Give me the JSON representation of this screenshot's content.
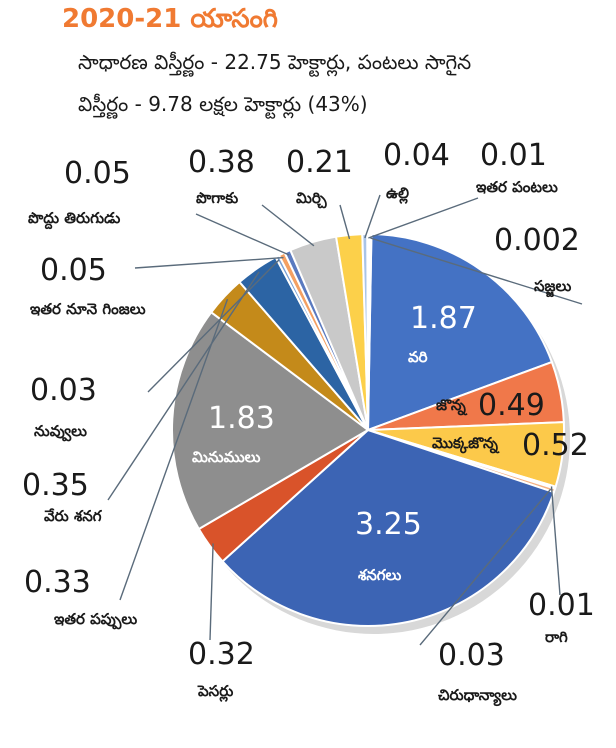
{
  "header": {
    "title": "2020-21 యాసంగి",
    "line1": "సాధారణ విస్తీర్ణం - 22.75 హెక్టార్లు, పంటలు సాగైన",
    "line2": "విస్తీర్ణం - 9.78 లక్షల హెక్టార్లు (43%)"
  },
  "chart_data": {
    "type": "pie",
    "title": "2020-21 యాసంగి",
    "unit": "",
    "slices": [
      {
        "label": "వరి",
        "value": 1.87,
        "color": "#4472c4"
      },
      {
        "label": "జొన్న",
        "value": 0.49,
        "color": "#f0784a"
      },
      {
        "label": "మొక్కజొన్న",
        "value": 0.52,
        "color": "#fcc94a"
      },
      {
        "label": "రాగి",
        "value": 0.01,
        "color": "#cfe0f4"
      },
      {
        "label": "చిరుధాన్యాలు",
        "value": 0.03,
        "color": "#f4b183"
      },
      {
        "label": "శనగలు",
        "value": 3.25,
        "color": "#3c64b4"
      },
      {
        "label": "పెసర్లు",
        "value": 0.32,
        "color": "#d9532a"
      },
      {
        "label": "మినుములు",
        "value": 1.83,
        "color": "#8e8e8e"
      },
      {
        "label": "ఇతర పప్పులు",
        "value": 0.33,
        "color": "#c48a1a"
      },
      {
        "label": "వేరు శనగ",
        "value": 0.35,
        "color": "#2c64a4"
      },
      {
        "label": "నువ్వులు",
        "value": 0.03,
        "color": "#7aa0d6"
      },
      {
        "label": "ఇతర నూనె గింజలు",
        "value": 0.05,
        "color": "#f4a063"
      },
      {
        "label": "పొద్దు తిరుగుడు",
        "value": 0.05,
        "color": "#5a7ac0"
      },
      {
        "label": "పొగాకు",
        "value": 0.38,
        "color": "#c9c9c9"
      },
      {
        "label": "మిర్చి",
        "value": 0.21,
        "color": "#fcd04a"
      },
      {
        "label": "ఉల్లి",
        "value": 0.04,
        "color": "#a9c4e8"
      },
      {
        "label": "ఇతర పంటలు",
        "value": 0.01,
        "color": "#e0e0e0"
      },
      {
        "label": "సజ్జలు",
        "value": 0.002,
        "color": "#fbe5d6"
      }
    ]
  }
}
